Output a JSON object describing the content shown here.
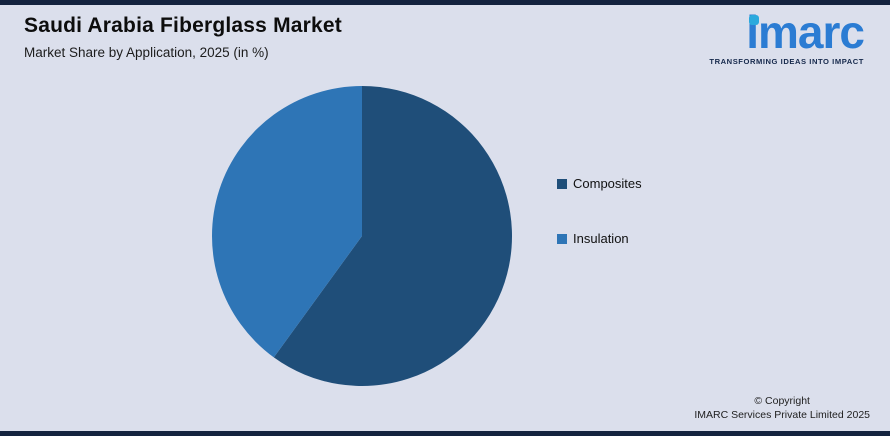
{
  "header": {
    "title": "Saudi Arabia Fiberglass Market",
    "subtitle": "Market Share by Application, 2025 (in %)"
  },
  "logo": {
    "text": "imarc",
    "tagline": "TRANSFORMING IDEAS INTO IMPACT",
    "text_color": "#2b7cd3",
    "dot_color": "#2aa9dd"
  },
  "chart_data": {
    "type": "pie",
    "title": "Saudi Arabia Fiberglass Market",
    "subtitle": "Market Share by Application, 2025 (in %)",
    "labels": [
      "Composites",
      "Insulation"
    ],
    "values": [
      60,
      40
    ],
    "unit": "%",
    "colors": [
      "#1f4e79",
      "#2e75b6"
    ],
    "start_angle": 0,
    "direction": "clockwise",
    "legend_position": "right",
    "data_labels": false
  },
  "legend": {
    "items": [
      {
        "label": "Composites",
        "color": "#1f4e79"
      },
      {
        "label": "Insulation",
        "color": "#2e75b6"
      }
    ]
  },
  "footer": {
    "copyright_line1": "© Copyright",
    "copyright_line2": "IMARC Services Private Limited 2025"
  },
  "theme": {
    "background": "#dbdfec",
    "edge_strip": "#14233f"
  }
}
